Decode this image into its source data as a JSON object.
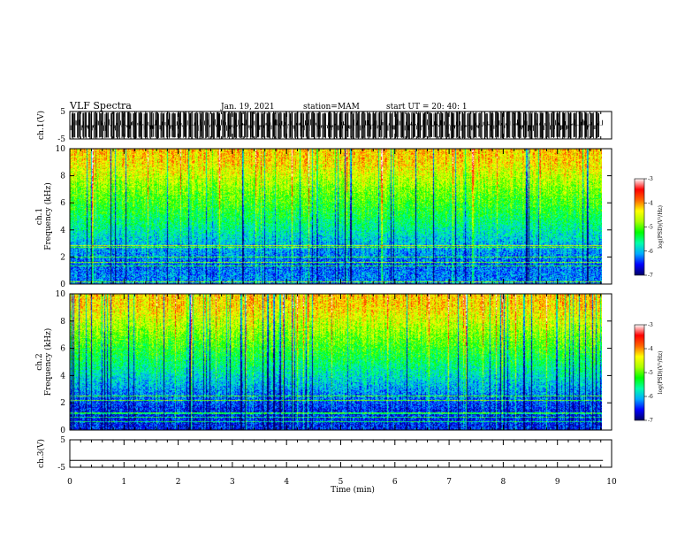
{
  "header": {
    "title": "VLF Spectra",
    "date": "Jan. 19, 2021",
    "station": "station=MAM",
    "start": "start  UT  =   20: 40: 1"
  },
  "colors": {
    "waveform": "#000000",
    "colormap": [
      "#000066",
      "#0000ff",
      "#00aaff",
      "#00ffaa",
      "#00ff00",
      "#aaff00",
      "#ffff00",
      "#ff6600",
      "#ff0000",
      "#ffffff"
    ]
  },
  "chart_data": [
    {
      "type": "line",
      "name": "ch1-waveform",
      "ylabel": "ch.1(V)",
      "ylim": [
        -5,
        5
      ],
      "yticks": [
        "5",
        "-5"
      ],
      "xlim": [
        0,
        10
      ],
      "amplitude_range": [
        -5,
        5
      ],
      "burst_count": 95
    },
    {
      "type": "heatmap",
      "name": "ch1-spectrogram",
      "ylabel": "ch.1\nFrequency  (kHz)",
      "xlim": [
        0,
        10
      ],
      "data_extent_x": [
        0,
        9.82
      ],
      "ylim": [
        0,
        10
      ],
      "yticks": [
        "0",
        "2",
        "4",
        "6",
        "8",
        "10"
      ],
      "colorbar": {
        "label": "log(PSD)(V²/Hz)",
        "range": [
          -7,
          -3
        ],
        "ticks": [
          "-3",
          "-4",
          "-5",
          "-6",
          "-7"
        ]
      },
      "freq_profile_log_psd": [
        {
          "freq_khz": 0.5,
          "level": -6.2
        },
        {
          "freq_khz": 1.5,
          "level": -6.3
        },
        {
          "freq_khz": 3,
          "level": -6.0
        },
        {
          "freq_khz": 5,
          "level": -5.4
        },
        {
          "freq_khz": 7,
          "level": -4.9
        },
        {
          "freq_khz": 9,
          "level": -4.3
        },
        {
          "freq_khz": 10,
          "level": -4.2
        }
      ]
    },
    {
      "type": "heatmap",
      "name": "ch2-spectrogram",
      "ylabel": "ch.2\nFrequency  (kHz)",
      "xlim": [
        0,
        10
      ],
      "data_extent_x": [
        0,
        9.82
      ],
      "ylim": [
        0,
        10
      ],
      "yticks": [
        "0",
        "2",
        "4",
        "6",
        "8",
        "10"
      ],
      "colorbar": {
        "label": "log(PSD)(V²/Hz)",
        "range": [
          -7,
          -3
        ],
        "ticks": [
          "-3",
          "-4",
          "-5",
          "-6",
          "-7"
        ]
      },
      "freq_profile_log_psd": [
        {
          "freq_khz": 0.5,
          "level": -6.5
        },
        {
          "freq_khz": 1.5,
          "level": -6.5
        },
        {
          "freq_khz": 3,
          "level": -6.1
        },
        {
          "freq_khz": 5,
          "level": -5.5
        },
        {
          "freq_khz": 7,
          "level": -4.9
        },
        {
          "freq_khz": 9,
          "level": -4.3
        },
        {
          "freq_khz": 10,
          "level": -4.2
        }
      ]
    },
    {
      "type": "line",
      "name": "ch3-waveform",
      "ylabel": "ch.3(V)",
      "ylim": [
        -5,
        5
      ],
      "yticks": [
        "5",
        "-5"
      ],
      "xlim": [
        0,
        10
      ],
      "constant_value": -2.5
    }
  ],
  "x_axis": {
    "label": "Time  (min)",
    "ticks": [
      "0",
      "1",
      "2",
      "3",
      "4",
      "5",
      "6",
      "7",
      "8",
      "9",
      "10"
    ]
  }
}
